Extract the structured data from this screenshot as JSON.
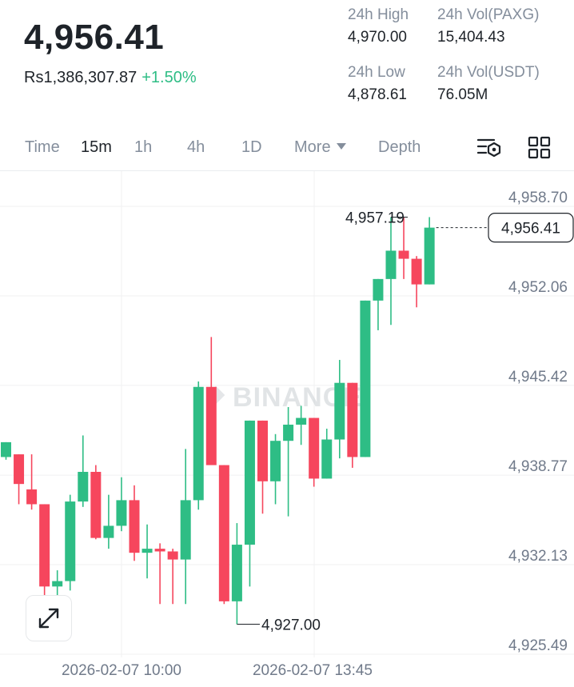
{
  "header": {
    "price": "4,956.41",
    "fiat_price": "Rs1,386,307.87",
    "change": "+1.50%",
    "stats": {
      "high_label": "24h High",
      "high_value": "4,970.00",
      "low_label": "24h Low",
      "low_value": "4,878.61",
      "vol_base_label": "24h Vol(PAXG)",
      "vol_base_value": "15,404.43",
      "vol_quote_label": "24h Vol(USDT)",
      "vol_quote_value": "76.05M"
    }
  },
  "tabs": {
    "time": "Time",
    "m15": "15m",
    "h1": "1h",
    "h4": "4h",
    "d1": "1D",
    "more": "More",
    "depth": "Depth",
    "active": "15m",
    "icons": [
      "chart-settings-icon",
      "grid-layout-icon"
    ]
  },
  "chart_data": {
    "type": "candlestick",
    "watermark": "BINANCE",
    "y_ticks": [
      "4,958.70",
      "4,952.06",
      "4,945.42",
      "4,938.77",
      "4,932.13",
      "4,925.49"
    ],
    "y_tick_values": [
      4958.7,
      4952.06,
      4945.42,
      4938.77,
      4932.13,
      4925.49
    ],
    "x_ticks": [
      "2026-02-07 10:00",
      "2026-02-07 13:45"
    ],
    "current_price_label": "4,956.41",
    "current_price": 4956.41,
    "max_label": "4,957.19",
    "min_label": "4,927.00",
    "colors": {
      "up": "#2ebd85",
      "down": "#f6465d",
      "grid": "#f0f1f2"
    },
    "candles": [
      {
        "o": 4939.4,
        "c": 4940.5,
        "h": 4940.5,
        "l": 4939.2
      },
      {
        "o": 4939.6,
        "c": 4937.4,
        "h": 4939.6,
        "l": 4935.9
      },
      {
        "o": 4937.0,
        "c": 4935.9,
        "h": 4939.6,
        "l": 4935.5
      },
      {
        "o": 4935.9,
        "c": 4929.8,
        "h": 4935.9,
        "l": 4929.1
      },
      {
        "o": 4929.8,
        "c": 4930.2,
        "h": 4931.0,
        "l": 4928.5
      },
      {
        "o": 4930.2,
        "c": 4936.1,
        "h": 4936.6,
        "l": 4929.5
      },
      {
        "o": 4936.1,
        "c": 4938.3,
        "h": 4941.0,
        "l": 4935.7
      },
      {
        "o": 4938.3,
        "c": 4933.4,
        "h": 4938.8,
        "l": 4933.3
      },
      {
        "o": 4933.4,
        "c": 4934.3,
        "h": 4936.6,
        "l": 4932.6
      },
      {
        "o": 4934.3,
        "c": 4936.2,
        "h": 4937.9,
        "l": 4933.9
      },
      {
        "o": 4936.2,
        "c": 4932.3,
        "h": 4937.3,
        "l": 4931.7
      },
      {
        "o": 4932.3,
        "c": 4932.6,
        "h": 4934.4,
        "l": 4930.4
      },
      {
        "o": 4932.6,
        "c": 4932.4,
        "h": 4933.0,
        "l": 4928.5
      },
      {
        "o": 4932.4,
        "c": 4931.8,
        "h": 4932.6,
        "l": 4928.5
      },
      {
        "o": 4931.8,
        "c": 4936.2,
        "h": 4940.0,
        "l": 4928.5
      },
      {
        "o": 4936.2,
        "c": 4944.6,
        "h": 4945.0,
        "l": 4935.5
      },
      {
        "o": 4944.6,
        "c": 4938.8,
        "h": 4948.3,
        "l": 4938.8
      },
      {
        "o": 4938.8,
        "c": 4928.7,
        "h": 4938.8,
        "l": 4928.5
      },
      {
        "o": 4928.7,
        "c": 4932.9,
        "h": 4934.5,
        "l": 4927.0
      },
      {
        "o": 4932.9,
        "c": 4942.1,
        "h": 4942.1,
        "l": 4929.8
      },
      {
        "o": 4942.1,
        "c": 4937.6,
        "h": 4942.1,
        "l": 4935.2
      },
      {
        "o": 4937.6,
        "c": 4940.6,
        "h": 4941.1,
        "l": 4935.9
      },
      {
        "o": 4940.6,
        "c": 4941.8,
        "h": 4943.1,
        "l": 4935.0
      },
      {
        "o": 4941.8,
        "c": 4942.3,
        "h": 4943.2,
        "l": 4940.3
      },
      {
        "o": 4942.3,
        "c": 4937.8,
        "h": 4942.3,
        "l": 4937.2
      },
      {
        "o": 4937.8,
        "c": 4940.7,
        "h": 4941.5,
        "l": 4937.8
      },
      {
        "o": 4940.7,
        "c": 4944.9,
        "h": 4946.6,
        "l": 4939.3
      },
      {
        "o": 4944.9,
        "c": 4939.4,
        "h": 4944.9,
        "l": 4938.6
      },
      {
        "o": 4939.4,
        "c": 4951.0,
        "h": 4951.0,
        "l": 4939.4
      },
      {
        "o": 4951.0,
        "c": 4952.6,
        "h": 4952.6,
        "l": 4948.8
      },
      {
        "o": 4952.6,
        "c": 4954.7,
        "h": 4957.19,
        "l": 4949.2
      },
      {
        "o": 4954.7,
        "c": 4954.1,
        "h": 4957.19,
        "l": 4952.6
      },
      {
        "o": 4954.1,
        "c": 4952.2,
        "h": 4954.3,
        "l": 4950.5
      },
      {
        "o": 4952.2,
        "c": 4956.41,
        "h": 4957.19,
        "l": 4952.2
      }
    ]
  }
}
